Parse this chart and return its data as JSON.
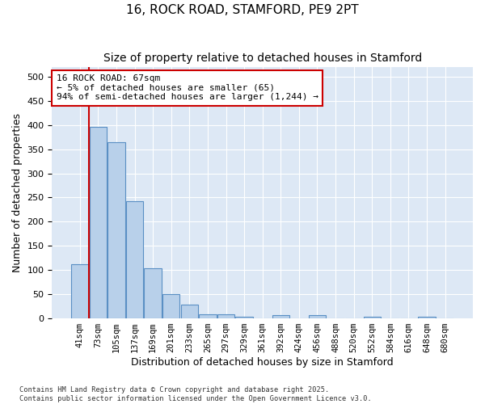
{
  "title": "16, ROCK ROAD, STAMFORD, PE9 2PT",
  "subtitle": "Size of property relative to detached houses in Stamford",
  "xlabel": "Distribution of detached houses by size in Stamford",
  "ylabel": "Number of detached properties",
  "categories": [
    "41sqm",
    "73sqm",
    "105sqm",
    "137sqm",
    "169sqm",
    "201sqm",
    "233sqm",
    "265sqm",
    "297sqm",
    "329sqm",
    "361sqm",
    "392sqm",
    "424sqm",
    "456sqm",
    "488sqm",
    "520sqm",
    "552sqm",
    "584sqm",
    "616sqm",
    "648sqm",
    "680sqm"
  ],
  "values": [
    112,
    397,
    365,
    243,
    104,
    50,
    29,
    9,
    9,
    4,
    0,
    6,
    0,
    6,
    0,
    0,
    4,
    0,
    0,
    4,
    0
  ],
  "bar_color": "#b8d0ea",
  "bar_edge_color": "#5a8fc4",
  "vline_x": 0.5,
  "vline_color": "#cc0000",
  "annotation_text": "16 ROCK ROAD: 67sqm\n← 5% of detached houses are smaller (65)\n94% of semi-detached houses are larger (1,244) →",
  "annotation_box_color": "#cc0000",
  "annotation_fontsize": 8,
  "title_fontsize": 11,
  "subtitle_fontsize": 10,
  "ylabel_fontsize": 9,
  "xlabel_fontsize": 9,
  "footer_text": "Contains HM Land Registry data © Crown copyright and database right 2025.\nContains public sector information licensed under the Open Government Licence v3.0.",
  "plot_background": "#dde8f5",
  "ylim": [
    0,
    520
  ],
  "yticks": [
    0,
    50,
    100,
    150,
    200,
    250,
    300,
    350,
    400,
    450,
    500
  ]
}
